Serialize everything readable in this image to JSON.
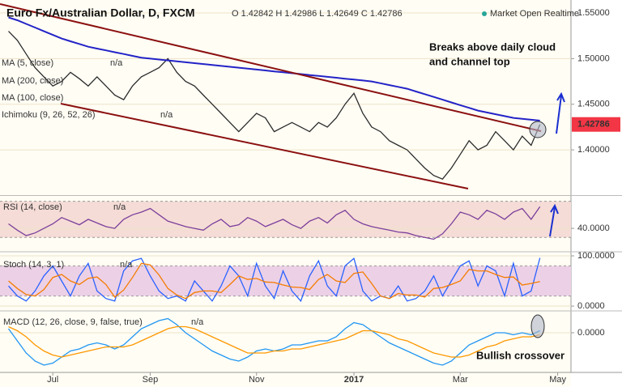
{
  "header": {
    "symbol": "Euro Fx/Australian Dollar, D, FXCM",
    "ohlc": "O 1.42842 H 1.42986 L 1.42649 C 1.42786",
    "status": "Market Open Realtime"
  },
  "na_label": "n/a",
  "chart_data": [
    {
      "type": "line",
      "legend_extra": [
        "MA (5, close)",
        "MA (100, close)",
        "Ichimoku (9, 26, 52, 26)"
      ],
      "annotations": [
        "Breaks above daily cloud",
        "and channel top"
      ],
      "ylim": [
        1.3513,
        1.5642
      ],
      "yticks": [
        {
          "value": 1.4,
          "label": "1.40000"
        },
        {
          "value": 1.45,
          "label": "1.45000"
        },
        {
          "value": 1.5,
          "label": "1.50000"
        },
        {
          "value": 1.55,
          "label": "1.55000"
        }
      ],
      "last_price_color": "#f23645",
      "series": [
        {
          "color": "#2b2b2b",
          "values": [
            1.53,
            1.52,
            1.505,
            1.49,
            1.48,
            1.47,
            1.475,
            1.485,
            1.478,
            1.47,
            1.48,
            1.47,
            1.46,
            1.455,
            1.47,
            1.48,
            1.485,
            1.49,
            1.5,
            1.485,
            1.475,
            1.47,
            1.46,
            1.45,
            1.44,
            1.43,
            1.42,
            1.43,
            1.44,
            1.435,
            1.42,
            1.425,
            1.43,
            1.425,
            1.42,
            1.43,
            1.425,
            1.435,
            1.45,
            1.462,
            1.44,
            1.425,
            1.42,
            1.41,
            1.405,
            1.4,
            1.39,
            1.38,
            1.372,
            1.368,
            1.38,
            1.395,
            1.41,
            1.4,
            1.405,
            1.42,
            1.41,
            1.4,
            1.415,
            1.405,
            1.42786,
            null,
            null,
            null
          ]
        },
        {
          "name": "MA (200, close)",
          "color": "#2323c8",
          "values": [
            1.545,
            1.542,
            1.538,
            1.534,
            1.53,
            1.526,
            1.522,
            1.519,
            1.516,
            1.513,
            1.511,
            1.509,
            1.507,
            1.505,
            1.503,
            1.501,
            1.5,
            1.499,
            1.498,
            1.497,
            1.496,
            1.495,
            1.494,
            1.493,
            1.492,
            1.491,
            1.49,
            1.489,
            1.488,
            1.487,
            1.486,
            1.485,
            1.484,
            1.483,
            1.482,
            1.481,
            1.48,
            1.479,
            1.478,
            1.477,
            1.476,
            1.475,
            1.473,
            1.471,
            1.469,
            1.467,
            1.464,
            1.461,
            1.458,
            1.455,
            1.452,
            1.449,
            1.446,
            1.443,
            1.441,
            1.439,
            1.437,
            1.435,
            1.434,
            1.433,
            1.432,
            null,
            null,
            null
          ]
        }
      ]
    },
    {
      "type": "line",
      "ylim": [
        15,
        75
      ],
      "yticks": [
        {
          "value": 40,
          "label": "40.0000"
        }
      ],
      "bands": [
        30,
        70
      ],
      "series": [
        {
          "name": "RSI (14, close)",
          "color": "#7b3f9c",
          "values": [
            45,
            38,
            32,
            35,
            40,
            45,
            52,
            48,
            44,
            50,
            46,
            42,
            40,
            50,
            55,
            58,
            62,
            55,
            48,
            45,
            42,
            40,
            38,
            45,
            50,
            42,
            44,
            52,
            48,
            42,
            46,
            50,
            44,
            40,
            48,
            52,
            46,
            55,
            60,
            50,
            45,
            42,
            40,
            38,
            36,
            35,
            32,
            30,
            28,
            34,
            45,
            58,
            55,
            50,
            60,
            56,
            50,
            58,
            62,
            50,
            64,
            null,
            null,
            null
          ]
        }
      ]
    },
    {
      "type": "line",
      "ylim": [
        -8,
        106.5
      ],
      "yticks": [
        {
          "value": 0,
          "label": "0.0000"
        },
        {
          "value": 100,
          "label": "100.0000"
        }
      ],
      "bands": [
        20,
        80
      ],
      "series": [
        {
          "name": "Stoch (14, 3, 1)",
          "color": "#2962ff",
          "values": [
            40,
            20,
            10,
            30,
            60,
            80,
            50,
            20,
            60,
            85,
            30,
            15,
            10,
            70,
            90,
            95,
            60,
            30,
            15,
            20,
            10,
            50,
            30,
            10,
            40,
            80,
            60,
            20,
            85,
            40,
            15,
            70,
            30,
            10,
            60,
            90,
            40,
            20,
            80,
            95,
            30,
            10,
            20,
            15,
            40,
            10,
            15,
            30,
            60,
            20,
            50,
            80,
            90,
            40,
            80,
            70,
            20,
            85,
            20,
            30,
            96,
            null,
            null,
            null
          ]
        },
        {
          "color": "#f57c00",
          "values": [
            50,
            35,
            23,
            20,
            33,
            57,
            63,
            50,
            43,
            55,
            58,
            43,
            18,
            32,
            57,
            85,
            82,
            62,
            35,
            22,
            15,
            27,
            30,
            30,
            27,
            43,
            60,
            53,
            55,
            48,
            47,
            42,
            38,
            37,
            33,
            53,
            63,
            50,
            47,
            65,
            68,
            45,
            20,
            15,
            25,
            22,
            22,
            18,
            35,
            37,
            43,
            50,
            73,
            70,
            70,
            63,
            57,
            58,
            42,
            45,
            49,
            null,
            null,
            null
          ]
        }
      ]
    },
    {
      "type": "line",
      "ylim": [
        -0.0196,
        0.0104
      ],
      "yticks": [
        {
          "value": 0,
          "label": "0.0000"
        }
      ],
      "annotations": [
        "Bullish crossover"
      ],
      "categories": [
        null,
        null,
        null,
        null,
        null,
        "Jul",
        null,
        null,
        null,
        null,
        null,
        null,
        null,
        null,
        null,
        null,
        "Sep",
        null,
        null,
        null,
        null,
        null,
        null,
        null,
        null,
        null,
        null,
        null,
        "Nov",
        null,
        null,
        null,
        null,
        null,
        null,
        null,
        null,
        null,
        null,
        "2017",
        null,
        null,
        null,
        null,
        null,
        null,
        null,
        null,
        null,
        null,
        null,
        "Mar",
        null,
        null,
        null,
        null,
        null,
        null,
        null,
        null,
        null,
        null,
        "May",
        null
      ],
      "series": [
        {
          "name": "MACD (12, 26, close, 9, false, true)",
          "color": "#2196f3",
          "values": [
            0.002,
            -0.004,
            -0.01,
            -0.014,
            -0.016,
            -0.015,
            -0.012,
            -0.009,
            -0.008,
            -0.006,
            -0.005,
            -0.006,
            -0.008,
            -0.006,
            -0.002,
            0.002,
            0.004,
            0.006,
            0.007,
            0.004,
            0.0,
            -0.003,
            -0.006,
            -0.009,
            -0.011,
            -0.013,
            -0.014,
            -0.012,
            -0.009,
            -0.008,
            -0.009,
            -0.008,
            -0.006,
            -0.006,
            -0.005,
            -0.004,
            -0.004,
            -0.002,
            0.002,
            0.005,
            0.004,
            0.001,
            -0.002,
            -0.005,
            -0.007,
            -0.009,
            -0.011,
            -0.013,
            -0.015,
            -0.016,
            -0.014,
            -0.01,
            -0.006,
            -0.004,
            -0.002,
            0.0,
            0.0,
            -0.001,
            0.0,
            -0.001,
            0.001,
            null,
            null,
            null
          ]
        },
        {
          "color": "#ff9800",
          "values": [
            0.003,
            0.001,
            -0.002,
            -0.006,
            -0.009,
            -0.011,
            -0.012,
            -0.011,
            -0.01,
            -0.009,
            -0.008,
            -0.007,
            -0.007,
            -0.007,
            -0.006,
            -0.004,
            -0.002,
            0.0,
            0.002,
            0.003,
            0.003,
            0.002,
            0.0,
            -0.002,
            -0.004,
            -0.006,
            -0.008,
            -0.01,
            -0.01,
            -0.01,
            -0.009,
            -0.009,
            -0.008,
            -0.008,
            -0.007,
            -0.006,
            -0.005,
            -0.004,
            -0.003,
            -0.001,
            0.001,
            0.001,
            0.0,
            -0.001,
            -0.003,
            -0.004,
            -0.006,
            -0.008,
            -0.01,
            -0.011,
            -0.012,
            -0.012,
            -0.011,
            -0.009,
            -0.007,
            -0.006,
            -0.004,
            -0.003,
            -0.002,
            -0.002,
            -0.001,
            null,
            null,
            null
          ]
        }
      ]
    }
  ]
}
